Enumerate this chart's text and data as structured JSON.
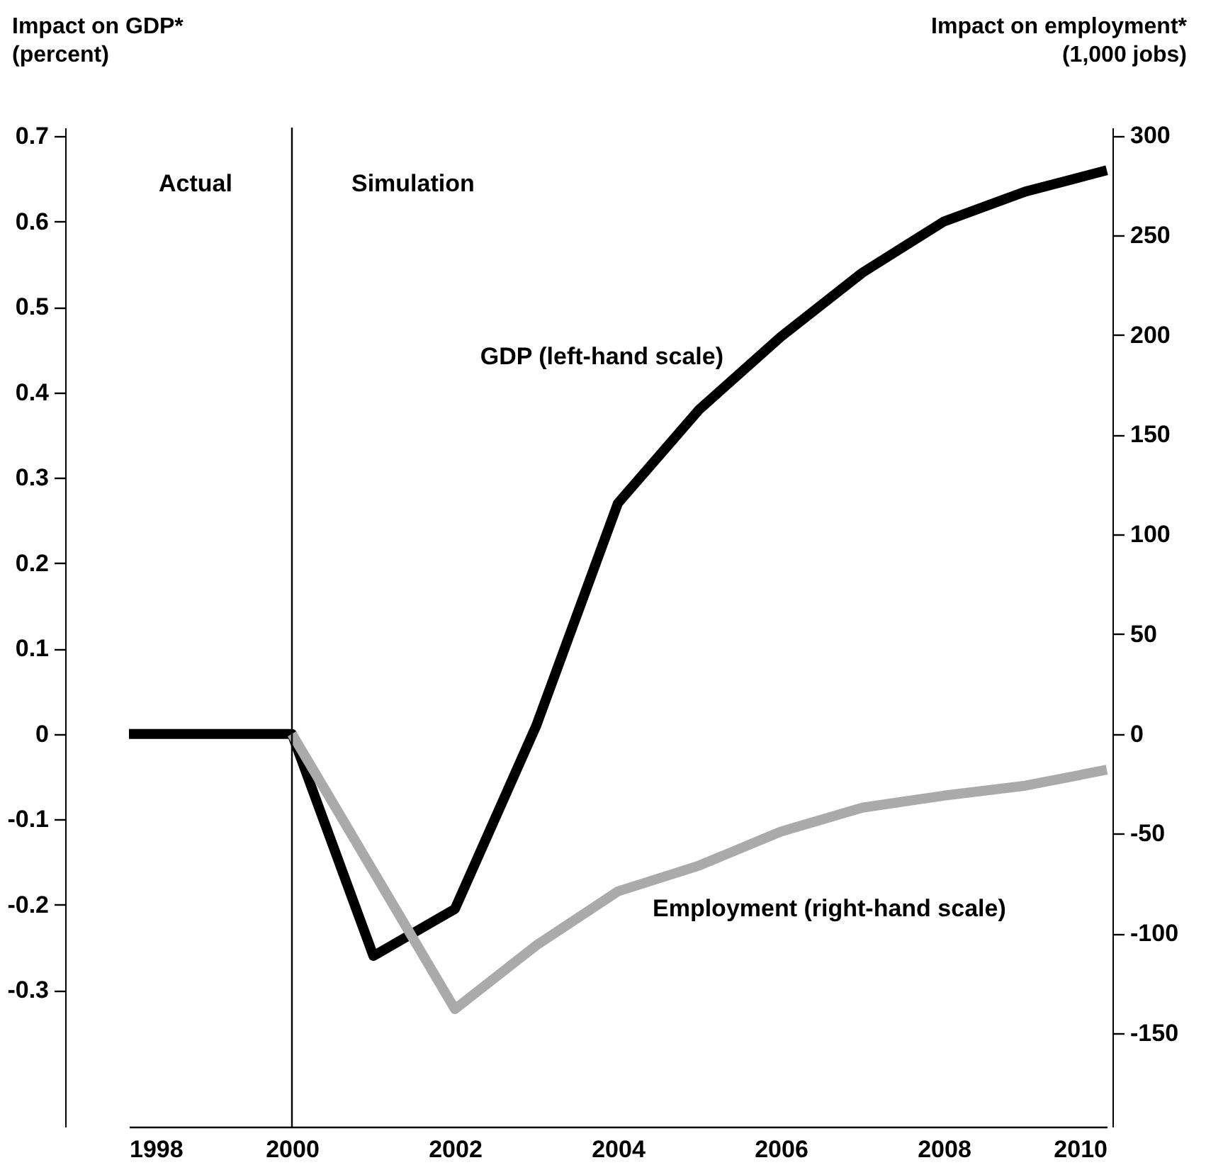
{
  "chart_data": {
    "type": "line",
    "ylabel": "Impact on GDP*\n(percent)",
    "y2label": "Impact on employment*\n(1,000 jobs)",
    "x": [
      1998,
      1999,
      2000,
      2001,
      2002,
      2003,
      2004,
      2005,
      2006,
      2007,
      2008,
      2009,
      2010
    ],
    "xlim": [
      1998,
      2010
    ],
    "xticks": [
      1998,
      2000,
      2002,
      2004,
      2006,
      2008,
      2010
    ],
    "ylim": [
      -0.46,
      0.71
    ],
    "yticks": [
      -0.3,
      -0.2,
      -0.1,
      0,
      0.1,
      0.2,
      0.3,
      0.4,
      0.5,
      0.6,
      0.7
    ],
    "y2lim": [
      -197,
      304
    ],
    "y2ticks": [
      -150,
      -100,
      -50,
      0,
      50,
      100,
      150,
      200,
      250,
      300
    ],
    "series": [
      {
        "name": "GDP (left-hand scale)",
        "color": "#000000",
        "values": [
          0,
          0,
          0,
          -0.26,
          -0.205,
          0.01,
          0.27,
          0.38,
          0.465,
          0.54,
          0.6,
          0.635,
          0.66
        ]
      },
      {
        "name": "Employment (right-hand scale)",
        "color": "#aaaaaa",
        "axis": "y2",
        "values": [
          null,
          null,
          0,
          -69,
          -138,
          -106,
          -79,
          -66,
          -49,
          -37,
          -31,
          -26,
          -18
        ]
      }
    ],
    "ref_lines": [
      {
        "axis": "x",
        "value": 2000,
        "color": "#000000"
      }
    ],
    "annotations": [
      "Actual",
      "Simulation"
    ],
    "grid": false,
    "legend": false
  }
}
